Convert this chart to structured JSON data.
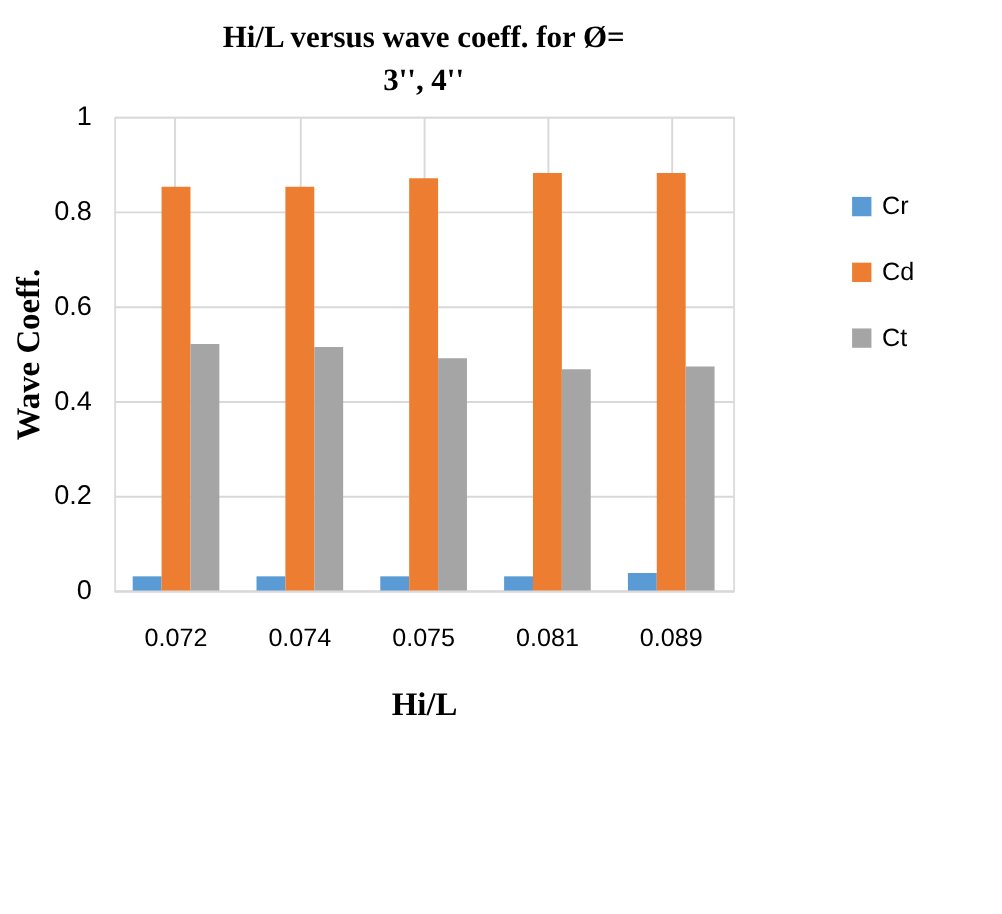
{
  "chart_data": {
    "type": "bar",
    "title": "Hi/L versus wave coeff. for Ø= 3'', 4''",
    "xlabel": "Hi/L",
    "ylabel": "Wave Coeff.",
    "categories": [
      "0.072",
      "0.074",
      "0.075",
      "0.081",
      "0.089"
    ],
    "series": [
      {
        "name": "Cr",
        "color": "#5b9bd5",
        "values": [
          0.03,
          0.03,
          0.03,
          0.03,
          0.037
        ]
      },
      {
        "name": "Cd",
        "color": "#ed7d31",
        "values": [
          0.852,
          0.852,
          0.87,
          0.881,
          0.881
        ]
      },
      {
        "name": "Ct",
        "color": "#a5a5a5",
        "values": [
          0.52,
          0.514,
          0.49,
          0.467,
          0.473
        ]
      }
    ],
    "ylim": [
      0,
      1
    ],
    "yticks": [
      0,
      0.2,
      0.4,
      0.6,
      0.8,
      1
    ],
    "grid": true,
    "legend": "right"
  }
}
